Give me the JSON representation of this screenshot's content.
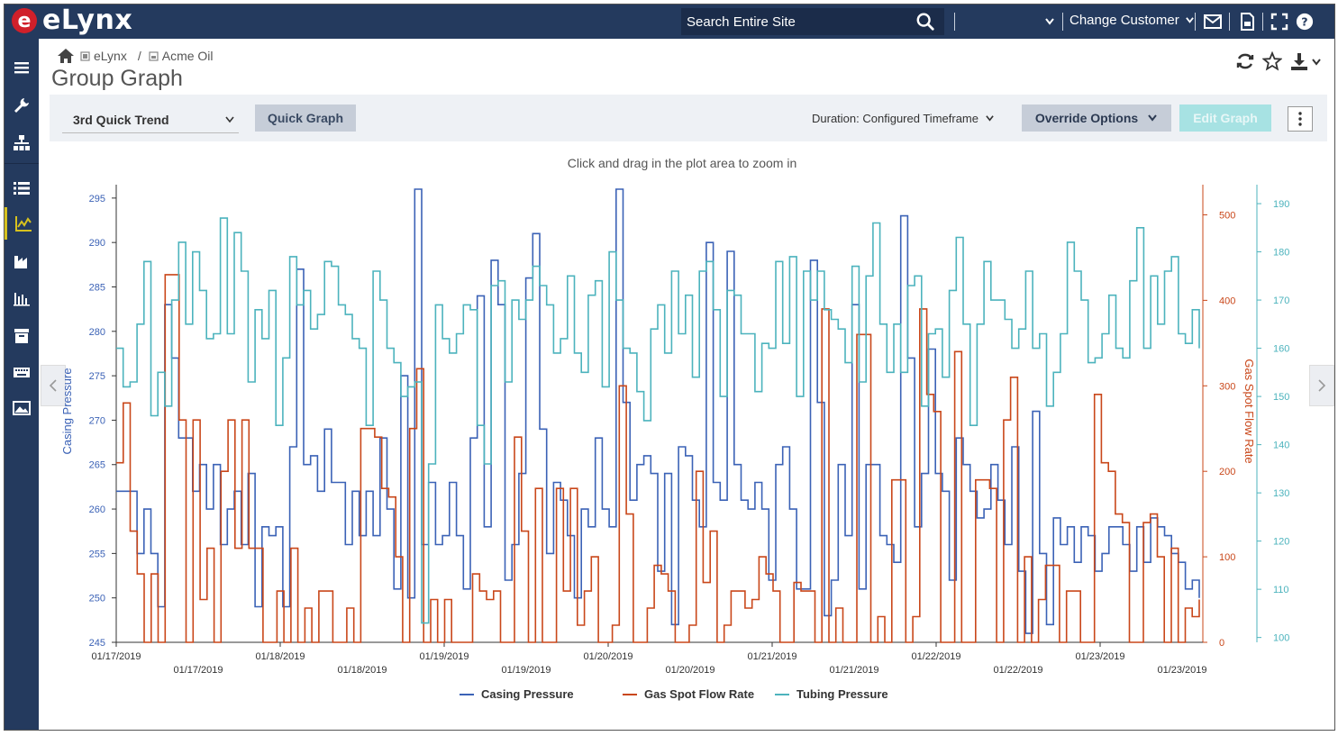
{
  "app": {
    "logo_letter": "e",
    "logo_text": "eLynx"
  },
  "topbar": {
    "search_placeholder": "Search Entire Site",
    "change_customer": "Change Customer"
  },
  "breadcrumb": {
    "items": [
      "eLynx",
      "Acme Oil"
    ],
    "separator": "/"
  },
  "page": {
    "title": "Group Graph"
  },
  "toolbar": {
    "trend_select": "3rd Quick Trend",
    "quick_graph": "Quick Graph",
    "duration_label": "Duration:",
    "duration_value": "Configured Timeframe",
    "override_options": "Override Options",
    "edit_graph": "Edit Graph"
  },
  "colors": {
    "casing": "#3b62b6",
    "gas": "#c9471a",
    "tubing": "#4cb3bd",
    "nav": "#243a5e"
  },
  "chart_data": {
    "type": "line",
    "subtitle": "Click and drag in the plot area to zoom in",
    "x_ticks_row1": [
      "01/17/2019",
      "01/18/2019",
      "01/19/2019",
      "01/20/2019",
      "01/21/2019",
      "01/22/2019",
      "01/23/2019"
    ],
    "x_ticks_row2": [
      "01/17/2019",
      "01/18/2019",
      "01/19/2019",
      "01/20/2019",
      "01/21/2019",
      "01/22/2019",
      "01/23/2019"
    ],
    "y_axes": [
      {
        "label": "Casing Pressure",
        "ticks": [
          245,
          250,
          255,
          260,
          265,
          270,
          275,
          280,
          285,
          290,
          295
        ],
        "range": [
          245,
          296
        ]
      },
      {
        "label": "Gas Spot Flow Rate",
        "ticks": [
          0,
          100,
          200,
          300,
          400,
          500
        ],
        "range": [
          0,
          530
        ]
      },
      {
        "label": "Tubing Pressure",
        "ticks": [
          100,
          110,
          120,
          130,
          140,
          150,
          160,
          170,
          180,
          190
        ],
        "range": [
          99,
          193
        ]
      }
    ],
    "series": [
      {
        "name": "Casing Pressure",
        "axis": 0,
        "values": [
          262,
          262,
          262,
          255,
          260,
          255,
          249,
          283,
          277,
          268,
          268,
          262,
          265,
          260,
          265,
          256,
          260,
          262,
          256,
          264,
          249,
          258,
          257,
          258,
          249,
          267,
          287,
          265,
          266,
          262,
          269,
          263,
          263,
          256,
          262,
          257,
          262,
          257,
          268,
          260,
          251,
          275,
          250,
          296,
          256,
          263,
          256,
          257,
          263,
          257,
          251,
          268,
          284,
          258,
          288,
          283,
          252,
          256,
          264,
          286,
          291,
          269,
          255,
          263,
          261,
          257,
          250,
          260,
          258,
          268,
          260,
          258,
          296,
          272,
          261,
          265,
          266,
          264,
          253,
          264,
          247,
          267,
          266,
          261,
          258,
          290,
          263,
          261,
          289,
          265,
          261,
          260,
          263,
          260,
          252,
          265,
          267,
          260,
          251,
          251,
          288,
          272,
          248,
          252,
          265,
          257,
          283,
          251,
          265,
          265,
          257,
          256,
          254,
          293,
          277,
          258,
          264,
          278,
          264,
          262,
          252,
          268,
          265,
          262,
          259,
          260,
          265,
          261,
          256,
          267,
          253,
          246,
          271,
          255,
          247,
          259,
          256,
          258,
          254,
          258,
          257,
          253,
          255,
          258,
          258,
          256,
          253,
          258,
          254,
          259,
          258,
          257,
          255,
          254,
          251,
          252,
          250
        ],
        "color": "#3b62b6"
      },
      {
        "name": "Gas Spot Flow Rate",
        "axis": 1,
        "values": [
          210,
          280,
          130,
          80,
          0,
          80,
          0,
          430,
          430,
          260,
          0,
          260,
          50,
          110,
          0,
          200,
          260,
          110,
          260,
          110,
          110,
          0,
          0,
          60,
          0,
          110,
          0,
          40,
          0,
          60,
          60,
          0,
          0,
          40,
          0,
          250,
          250,
          240,
          180,
          170,
          100,
          0,
          250,
          320,
          0,
          50,
          0,
          50,
          0,
          0,
          0,
          80,
          60,
          50,
          60,
          0,
          0,
          240,
          130,
          0,
          180,
          0,
          0,
          180,
          60,
          180,
          20,
          60,
          100,
          0,
          0,
          20,
          300,
          150,
          0,
          0,
          40,
          90,
          80,
          60,
          0,
          0,
          20,
          200,
          70,
          130,
          0,
          20,
          60,
          60,
          40,
          50,
          100,
          80,
          60,
          0,
          0,
          70,
          60,
          60,
          0,
          390,
          0,
          40,
          0,
          0,
          360,
          360,
          0,
          30,
          0,
          190,
          190,
          0,
          30,
          390,
          290,
          270,
          0,
          0,
          340,
          0,
          0,
          190,
          190,
          180,
          0,
          260,
          310,
          0,
          100,
          0,
          50,
          90,
          90,
          0,
          60,
          60,
          0,
          0,
          290,
          210,
          200,
          150,
          140,
          0,
          0,
          140,
          150,
          100,
          0,
          110,
          0,
          40,
          30,
          50
        ],
        "color": "#c9471a"
      },
      {
        "name": "Tubing Pressure",
        "axis": 2,
        "values": [
          160,
          152,
          153,
          165,
          178,
          146,
          155,
          148,
          170,
          182,
          165,
          180,
          172,
          162,
          163,
          187,
          163,
          184,
          176,
          153,
          168,
          162,
          172,
          144,
          158,
          179,
          169,
          172,
          164,
          167,
          178,
          177,
          169,
          167,
          162,
          160,
          144,
          176,
          170,
          160,
          157,
          150,
          152,
          153,
          103,
          136,
          169,
          162,
          159,
          163,
          169,
          168,
          144,
          136,
          173,
          174,
          153,
          170,
          166,
          170,
          177,
          173,
          169,
          159,
          162,
          175,
          159,
          155,
          171,
          174,
          152,
          180,
          170,
          160,
          159,
          151,
          145,
          164,
          169,
          159,
          176,
          163,
          171,
          154,
          176,
          178,
          168,
          150,
          172,
          171,
          163,
          163,
          151,
          161,
          160,
          178,
          161,
          179,
          150,
          176,
          170,
          176,
          168,
          166,
          164,
          157,
          177,
          153,
          175,
          186,
          165,
          155,
          165,
          155,
          173,
          175,
          148,
          163,
          164,
          154,
          172,
          183,
          165,
          144,
          165,
          178,
          170,
          170,
          166,
          160,
          164,
          176,
          160,
          163,
          148,
          155,
          163,
          182,
          176,
          170,
          157,
          158,
          163,
          171,
          160,
          158,
          174,
          185,
          160,
          175,
          165,
          176,
          179,
          163,
          161,
          168,
          160
        ],
        "color": "#4cb3bd"
      }
    ],
    "legend": [
      "Casing Pressure",
      "Gas Spot Flow Rate",
      "Tubing Pressure"
    ],
    "legend_position": "bottom-center",
    "grid": false
  }
}
